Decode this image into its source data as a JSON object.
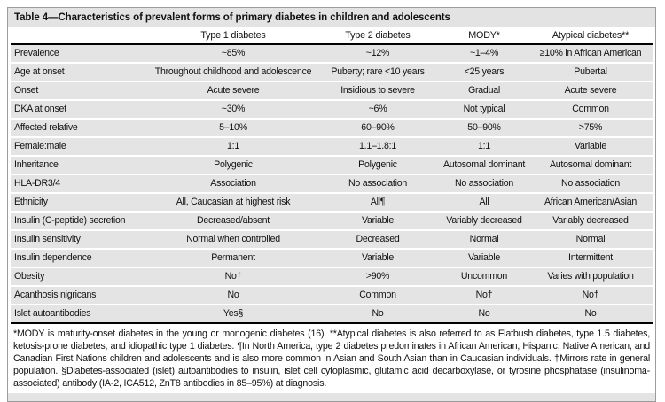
{
  "table": {
    "title": "Table 4—Characteristics of prevalent forms of primary diabetes in children and adolescents",
    "col_headers": [
      "Type 1 diabetes",
      "Type 2 diabetes",
      "MODY*",
      "Atypical diabetes**"
    ],
    "rows": [
      {
        "label": "Prevalence",
        "cells": [
          "~85%",
          "~12%",
          "~1–4%",
          "≥10% in African American"
        ]
      },
      {
        "label": "Age at onset",
        "cells": [
          "Throughout childhood and adolescence",
          "Puberty; rare <10 years",
          "<25 years",
          "Pubertal"
        ]
      },
      {
        "label": "Onset",
        "cells": [
          "Acute severe",
          "Insidious to severe",
          "Gradual",
          "Acute severe"
        ]
      },
      {
        "label": "DKA at onset",
        "cells": [
          "~30%",
          "~6%",
          "Not typical",
          "Common"
        ]
      },
      {
        "label": "Affected relative",
        "cells": [
          "5–10%",
          "60–90%",
          "50–90%",
          ">75%"
        ]
      },
      {
        "label": "Female:male",
        "cells": [
          "1:1",
          "1.1–1.8:1",
          "1:1",
          "Variable"
        ]
      },
      {
        "label": "Inheritance",
        "cells": [
          "Polygenic",
          "Polygenic",
          "Autosomal dominant",
          "Autosomal dominant"
        ]
      },
      {
        "label": "HLA-DR3/4",
        "cells": [
          "Association",
          "No association",
          "No association",
          "No association"
        ]
      },
      {
        "label": "Ethnicity",
        "cells": [
          "All, Caucasian at highest risk",
          "All¶",
          "All",
          "African American/Asian"
        ]
      },
      {
        "label": "Insulin (C-peptide) secretion",
        "cells": [
          "Decreased/absent",
          "Variable",
          "Variably decreased",
          "Variably decreased"
        ]
      },
      {
        "label": "Insulin sensitivity",
        "cells": [
          "Normal when controlled",
          "Decreased",
          "Normal",
          "Normal"
        ]
      },
      {
        "label": "Insulin dependence",
        "cells": [
          "Permanent",
          "Variable",
          "Variable",
          "Intermittent"
        ]
      },
      {
        "label": "Obesity",
        "cells": [
          "No†",
          ">90%",
          "Uncommon",
          "Varies with population"
        ]
      },
      {
        "label": "Acanthosis nigricans",
        "cells": [
          "No",
          "Common",
          "No†",
          "No†"
        ]
      },
      {
        "label": "Islet autoantibodies",
        "cells": [
          "Yes§",
          "No",
          "No",
          "No"
        ]
      }
    ],
    "footnote": "*MODY is maturity-onset diabetes in the young or monogenic diabetes (16). **Atypical diabetes is also referred to as Flatbush diabetes, type 1.5 diabetes, ketosis-prone diabetes, and idiopathic type 1 diabetes. ¶In North America, type 2 diabetes predominates in African American, Hispanic, Native American, and Canadian First Nations children and adolescents and is also more common in Asian and South Asian than in Caucasian individuals. †Mirrors rate in general population. §Diabetes-associated (islet) autoantibodies to insulin, islet cell cytoplasmic, glutamic acid decarboxylase, or tyrosine phosphatase (insulinoma-associated) antibody (IA-2, ICA512, ZnT8 antibodies in 85–95%) at diagnosis."
  },
  "colors": {
    "row_shade": "#e4e4e4",
    "rule": "#000000",
    "border": "#9c9c9c",
    "text": "#111111"
  }
}
